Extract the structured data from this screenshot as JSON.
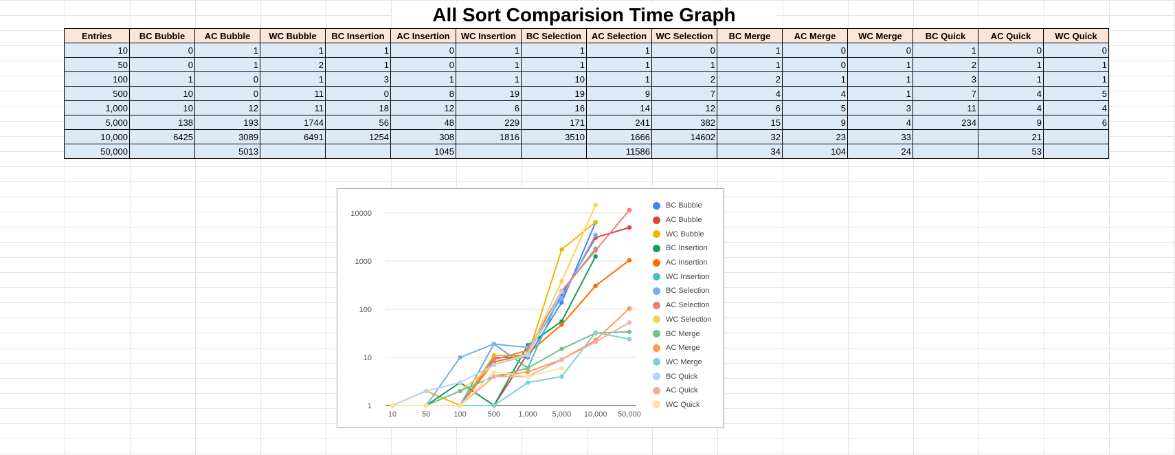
{
  "sheet": {
    "title": "All Sort Comparision Time Graph",
    "headers": [
      "Entries",
      "BC Bubble",
      "AC Bubble",
      "WC Bubble",
      "BC Insertion",
      "AC Insertion",
      "WC Insertion",
      "BC Selection",
      "AC Selection",
      "WC Selection",
      "BC Merge",
      "AC Merge",
      "WC Merge",
      "BC Quick",
      "AC Quick",
      "WC Quick"
    ],
    "rows": [
      [
        "10",
        "0",
        "1",
        "1",
        "1",
        "0",
        "1",
        "1",
        "1",
        "0",
        "1",
        "0",
        "0",
        "1",
        "0",
        "0"
      ],
      [
        "50",
        "0",
        "1",
        "2",
        "1",
        "0",
        "1",
        "1",
        "1",
        "1",
        "1",
        "0",
        "1",
        "2",
        "1",
        "1"
      ],
      [
        "100",
        "1",
        "0",
        "1",
        "3",
        "1",
        "1",
        "10",
        "1",
        "2",
        "2",
        "1",
        "1",
        "3",
        "1",
        "1"
      ],
      [
        "500",
        "10",
        "0",
        "11",
        "0",
        "8",
        "19",
        "19",
        "9",
        "7",
        "4",
        "4",
        "1",
        "7",
        "4",
        "5"
      ],
      [
        "1,000",
        "10",
        "12",
        "11",
        "18",
        "12",
        "6",
        "16",
        "14",
        "12",
        "6",
        "5",
        "3",
        "11",
        "4",
        "4"
      ],
      [
        "5,000",
        "138",
        "193",
        "1744",
        "56",
        "48",
        "229",
        "171",
        "241",
        "382",
        "15",
        "9",
        "4",
        "234",
        "9",
        "6"
      ],
      [
        "10,000",
        "6425",
        "3089",
        "6491",
        "1254",
        "308",
        "1816",
        "3510",
        "1666",
        "14602",
        "32",
        "23",
        "33",
        "",
        "21",
        ""
      ],
      [
        "50,000",
        "",
        "5013",
        "",
        "",
        "1045",
        "",
        "",
        "11586",
        "",
        "34",
        "104",
        "24",
        "",
        "53",
        ""
      ]
    ]
  },
  "chart_data": {
    "type": "line",
    "title": "",
    "xlabel": "",
    "ylabel": "",
    "y_scale": "log",
    "ylim": [
      1,
      10000
    ],
    "yticks": [
      "1",
      "10",
      "100",
      "1000",
      "10000"
    ],
    "categories": [
      "10",
      "50",
      "100",
      "500",
      "1,000",
      "5,000",
      "10,000",
      "50,000"
    ],
    "legend_position": "right",
    "series": [
      {
        "name": "BC Bubble",
        "color": "#4285f4",
        "values": [
          0,
          0,
          1,
          10,
          10,
          138,
          6425,
          null
        ]
      },
      {
        "name": "AC Bubble",
        "color": "#db4437",
        "values": [
          1,
          1,
          0,
          0,
          12,
          193,
          3089,
          5013
        ]
      },
      {
        "name": "WC Bubble",
        "color": "#f4b400",
        "values": [
          1,
          2,
          1,
          11,
          11,
          1744,
          6491,
          null
        ]
      },
      {
        "name": "BC Insertion",
        "color": "#0f9d58",
        "values": [
          1,
          1,
          3,
          0,
          18,
          56,
          1254,
          null
        ]
      },
      {
        "name": "AC Insertion",
        "color": "#ff6d01",
        "values": [
          0,
          0,
          1,
          8,
          12,
          48,
          308,
          1045
        ]
      },
      {
        "name": "WC Insertion",
        "color": "#46bdc6",
        "values": [
          1,
          1,
          1,
          19,
          6,
          229,
          1816,
          null
        ]
      },
      {
        "name": "BC Selection",
        "color": "#7baaf7",
        "values": [
          1,
          1,
          10,
          19,
          16,
          171,
          3510,
          null
        ]
      },
      {
        "name": "AC Selection",
        "color": "#f07b72",
        "values": [
          1,
          1,
          1,
          9,
          14,
          241,
          1666,
          11586
        ]
      },
      {
        "name": "WC Selection",
        "color": "#fcd04f",
        "values": [
          0,
          1,
          2,
          7,
          12,
          382,
          14602,
          null
        ]
      },
      {
        "name": "BC Merge",
        "color": "#71c287",
        "values": [
          1,
          1,
          2,
          4,
          6,
          15,
          32,
          34
        ]
      },
      {
        "name": "AC Merge",
        "color": "#ff994d",
        "values": [
          0,
          0,
          1,
          4,
          5,
          9,
          23,
          104
        ]
      },
      {
        "name": "WC Merge",
        "color": "#7ed1d7",
        "values": [
          0,
          1,
          1,
          1,
          3,
          4,
          33,
          24
        ]
      },
      {
        "name": "BC Quick",
        "color": "#b9d0fa",
        "values": [
          1,
          2,
          3,
          7,
          11,
          234,
          null,
          null
        ]
      },
      {
        "name": "AC Quick",
        "color": "#f3aba5",
        "values": [
          0,
          1,
          1,
          4,
          4,
          9,
          21,
          53
        ]
      },
      {
        "name": "WC Quick",
        "color": "#fde49b",
        "values": [
          0,
          1,
          1,
          5,
          4,
          6,
          null,
          null
        ]
      }
    ]
  }
}
